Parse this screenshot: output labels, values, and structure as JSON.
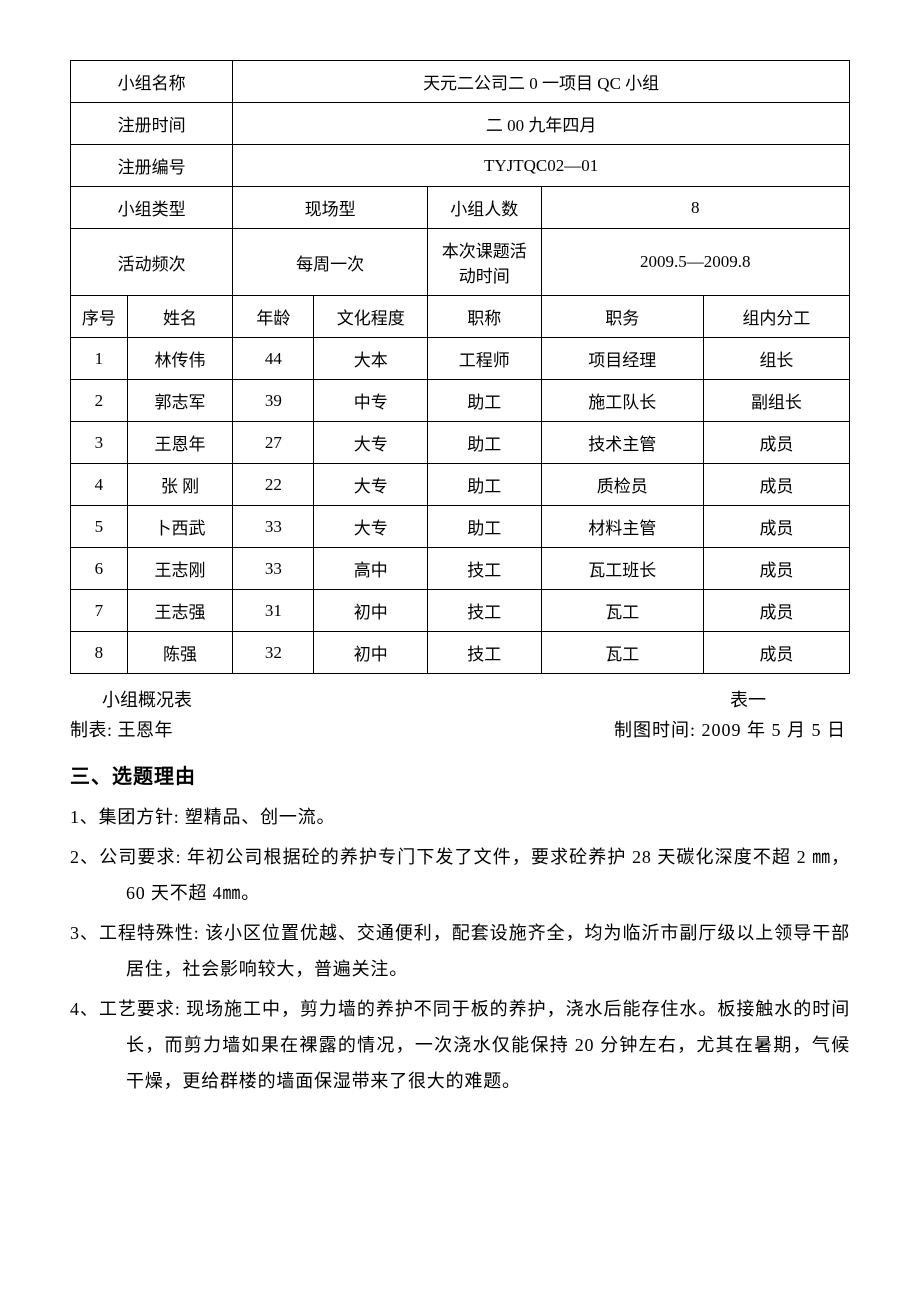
{
  "table": {
    "header_rows": [
      {
        "label": "小组名称",
        "value": "天元二公司二 0 一项目 QC 小组"
      },
      {
        "label": "注册时间",
        "value": "二 00 九年四月"
      },
      {
        "label": "注册编号",
        "value": "TYJTQC02—01"
      }
    ],
    "type_row": {
      "label1": "小组类型",
      "value1": "现场型",
      "label2": "小组人数",
      "value2": "8"
    },
    "freq_row": {
      "label1": "活动频次",
      "value1": "每周一次",
      "label2": "本次课题活动时间",
      "value2": "2009.5—2009.8"
    },
    "columns": [
      "序号",
      "姓名",
      "年龄",
      "文化程度",
      "职称",
      "职务",
      "组内分工"
    ],
    "rows": [
      [
        "1",
        "林传伟",
        "44",
        "大本",
        "工程师",
        "项目经理",
        "组长"
      ],
      [
        "2",
        "郭志军",
        "39",
        "中专",
        "助工",
        "施工队长",
        "副组长"
      ],
      [
        "3",
        "王恩年",
        "27",
        "大专",
        "助工",
        "技术主管",
        "成员"
      ],
      [
        "4",
        "张 刚",
        "22",
        "大专",
        "助工",
        "质检员",
        "成员"
      ],
      [
        "5",
        "卜西武",
        "33",
        "大专",
        "助工",
        "材料主管",
        "成员"
      ],
      [
        "6",
        "王志刚",
        "33",
        "高中",
        "技工",
        "瓦工班长",
        "成员"
      ],
      [
        "7",
        "王志强",
        "31",
        "初中",
        "技工",
        "瓦工",
        "成员"
      ],
      [
        "8",
        "陈强",
        "32",
        "初中",
        "技工",
        "瓦工",
        "成员"
      ]
    ]
  },
  "caption": {
    "left": "小组概况表",
    "right": "表一"
  },
  "author": {
    "left": "制表: 王恩年",
    "right": "制图时间: 2009 年 5 月 5 日"
  },
  "section_title": "三、选题理由",
  "paragraphs": [
    "1、集团方针: 塑精品、创一流。",
    "2、公司要求: 年初公司根据砼的养护专门下发了文件，要求砼养护 28 天碳化深度不超 2 ㎜，60 天不超 4㎜。",
    "3、工程特殊性: 该小区位置优越、交通便利，配套设施齐全，均为临沂市副厅级以上领导干部居住，社会影响较大，普遍关注。",
    "4、工艺要求: 现场施工中，剪力墙的养护不同于板的养护，浇水后能存住水。板接触水的时间长，而剪力墙如果在裸露的情况，一次浇水仅能保持 20 分钟左右，尤其在暑期，气候干燥，更给群楼的墙面保湿带来了很大的难题。"
  ]
}
